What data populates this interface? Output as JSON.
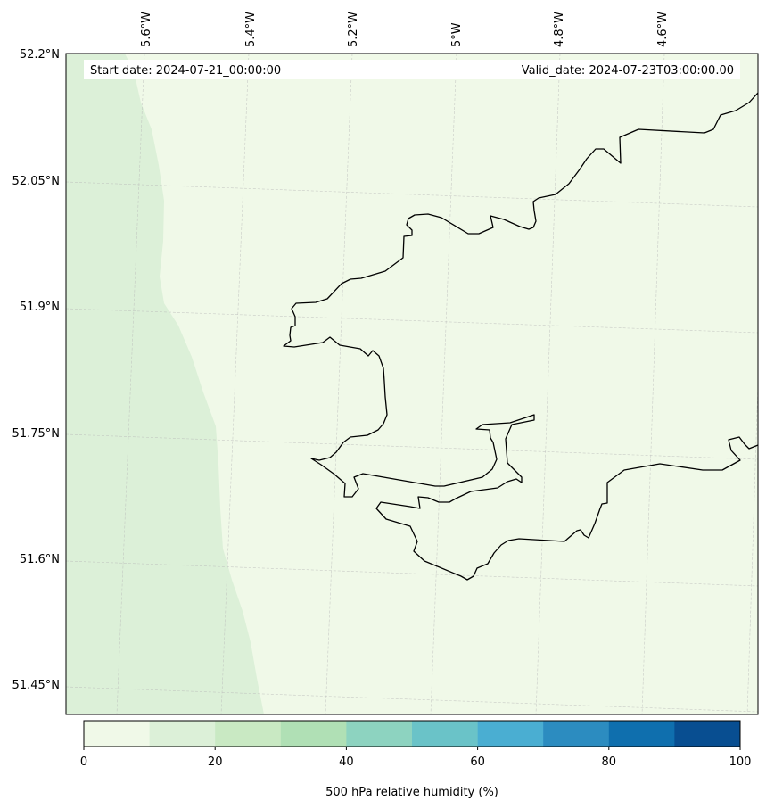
{
  "map": {
    "start_date_label": "Start date: 2024-07-21_00:00:00",
    "valid_date_label": "Valid_date: 2024-07-23T03:00:00.00",
    "lon_labels": [
      "5.6°W",
      "5.4°W",
      "5.2°W",
      "5°W",
      "4.8°W",
      "4.6°W"
    ],
    "lat_labels": [
      "52.2°N",
      "52.05°N",
      "51.9°N",
      "51.75°N",
      "51.6°N",
      "51.45°N"
    ],
    "land_color": "#f0f9e8",
    "sea_band_color": "#dcf0d8",
    "coastline_color": "#000000"
  },
  "colorbar": {
    "label": "500 hPa relative humidity (%)",
    "ticks": [
      "0",
      "20",
      "40",
      "60",
      "80",
      "100"
    ],
    "bins": [
      {
        "from": 0,
        "to": 10,
        "color": "#f0f9e8"
      },
      {
        "from": 10,
        "to": 20,
        "color": "#dcf0d8"
      },
      {
        "from": 20,
        "to": 30,
        "color": "#c9e9c3"
      },
      {
        "from": 30,
        "to": 40,
        "color": "#b0e0b5"
      },
      {
        "from": 40,
        "to": 50,
        "color": "#8dd3c0"
      },
      {
        "from": 50,
        "to": 60,
        "color": "#6ac3c8"
      },
      {
        "from": 60,
        "to": 70,
        "color": "#4aaed2"
      },
      {
        "from": 70,
        "to": 80,
        "color": "#2c8cc0"
      },
      {
        "from": 80,
        "to": 90,
        "color": "#0f6fae"
      },
      {
        "from": 90,
        "to": 100,
        "color": "#084e91"
      }
    ]
  }
}
